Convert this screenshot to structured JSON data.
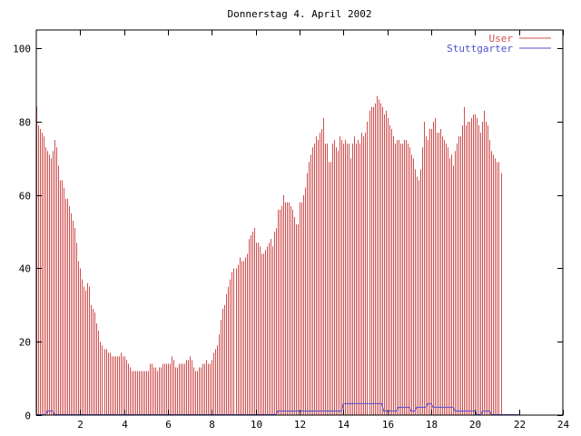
{
  "chart_data": {
    "type": "bar",
    "title": "Donnerstag 4. April 2002",
    "xlabel": "",
    "ylabel": "",
    "xlim": [
      0,
      24
    ],
    "ylim": [
      0,
      105
    ],
    "x_ticks": [
      "2",
      "4",
      "6",
      "8",
      "10",
      "12",
      "14",
      "16",
      "18",
      "20",
      "22",
      "24"
    ],
    "y_ticks": [
      "0",
      "20",
      "40",
      "60",
      "80",
      "100"
    ],
    "grid": false,
    "legend_position": "top-right",
    "x_step_hours": 0.08333,
    "series": [
      {
        "name": "User",
        "color": "#d05050",
        "style": "impulses",
        "values": [
          84,
          79,
          78,
          77,
          76,
          73,
          72,
          71,
          70,
          72,
          75,
          73,
          68,
          64,
          64,
          62,
          59,
          59,
          57,
          55,
          53,
          51,
          47,
          42,
          40,
          37,
          35,
          34,
          36,
          35,
          30,
          29,
          28,
          25,
          23,
          20,
          19,
          18,
          18,
          17,
          17,
          16,
          16,
          16,
          16,
          16,
          17,
          16,
          16,
          15,
          14,
          13,
          12,
          12,
          12,
          12,
          12,
          12,
          12,
          12,
          12,
          12,
          14,
          14,
          13,
          13,
          12,
          13,
          13,
          14,
          14,
          14,
          14,
          14,
          16,
          15,
          13,
          13,
          14,
          14,
          14,
          14,
          15,
          15,
          16,
          15,
          13,
          12,
          12,
          13,
          13,
          14,
          14,
          15,
          14,
          14,
          15,
          17,
          18,
          19,
          22,
          26,
          29,
          30,
          33,
          35,
          37,
          39,
          40,
          40,
          41,
          43,
          42,
          42,
          43,
          44,
          48,
          49,
          50,
          51,
          47,
          47,
          46,
          44,
          44,
          45,
          46,
          47,
          48,
          46,
          50,
          51,
          56,
          56,
          57,
          60,
          58,
          58,
          58,
          57,
          56,
          54,
          52,
          52,
          58,
          58,
          60,
          62,
          66,
          69,
          71,
          73,
          74,
          76,
          75,
          77,
          78,
          81,
          74,
          74,
          69,
          69,
          74,
          75,
          73,
          72,
          76,
          75,
          74,
          75,
          74,
          74,
          70,
          74,
          76,
          74,
          75,
          74,
          77,
          76,
          77,
          80,
          83,
          84,
          84,
          85,
          87,
          86,
          85,
          84,
          82,
          83,
          81,
          79,
          78,
          76,
          74,
          75,
          75,
          74,
          74,
          75,
          75,
          74,
          73,
          71,
          70,
          67,
          65,
          64,
          67,
          73,
          80,
          76,
          75,
          78,
          78,
          80,
          81,
          77,
          77,
          78,
          76,
          75,
          74,
          73,
          70,
          71,
          68,
          72,
          74,
          76,
          76,
          79,
          84,
          79,
          80,
          80,
          81,
          82,
          82,
          81,
          79,
          77,
          80,
          83,
          80,
          79,
          75,
          72,
          71,
          70,
          69,
          69,
          66
        ]
      },
      {
        "name": "Stuttgarter",
        "color": "#5050d0",
        "style": "line",
        "values": [
          0,
          0,
          0,
          0,
          0,
          0,
          1,
          1,
          1,
          1,
          0,
          0,
          0,
          0,
          0,
          0,
          0,
          0,
          0,
          0,
          0,
          0,
          0,
          0,
          0,
          0,
          0,
          0,
          0,
          0,
          0,
          0,
          0,
          0,
          0,
          0,
          0,
          0,
          0,
          0,
          0,
          0,
          0,
          0,
          0,
          0,
          0,
          0,
          0,
          0,
          0,
          0,
          0,
          0,
          0,
          0,
          0,
          0,
          0,
          0,
          0,
          0,
          0,
          0,
          0,
          0,
          0,
          0,
          0,
          0,
          0,
          0,
          0,
          0,
          0,
          0,
          0,
          0,
          0,
          0,
          0,
          0,
          0,
          0,
          0,
          0,
          0,
          0,
          0,
          0,
          0,
          0,
          0,
          0,
          0,
          0,
          0,
          0,
          0,
          0,
          0,
          0,
          0,
          0,
          0,
          0,
          0,
          0,
          0,
          0,
          0,
          0,
          0,
          0,
          0,
          0,
          0,
          0,
          0,
          0,
          0,
          0,
          0,
          0,
          0,
          0,
          0,
          0,
          0,
          0,
          0,
          0,
          1,
          1,
          1,
          1,
          1,
          1,
          1,
          1,
          1,
          1,
          1,
          1,
          1,
          1,
          1,
          1,
          1,
          1,
          1,
          1,
          1,
          1,
          1,
          1,
          1,
          1,
          1,
          1,
          1,
          1,
          1,
          1,
          1,
          1,
          1,
          1,
          3,
          3,
          3,
          3,
          3,
          3,
          3,
          3,
          3,
          3,
          3,
          3,
          3,
          3,
          3,
          3,
          3,
          3,
          3,
          3,
          3,
          3,
          1,
          1,
          1,
          1,
          1,
          1,
          1,
          1,
          2,
          2,
          2,
          2,
          2,
          2,
          2,
          1,
          1,
          1,
          2,
          2,
          2,
          2,
          2,
          2,
          3,
          3,
          3,
          2,
          2,
          2,
          2,
          2,
          2,
          2,
          2,
          2,
          2,
          2,
          2,
          1,
          1,
          1,
          1,
          1,
          1,
          1,
          1,
          1,
          1,
          1,
          1,
          0,
          0,
          0,
          1,
          1,
          1,
          1,
          1,
          0,
          0,
          0,
          0,
          0,
          0,
          0,
          0,
          0,
          0,
          0,
          0,
          0,
          0,
          0,
          0
        ]
      }
    ]
  }
}
